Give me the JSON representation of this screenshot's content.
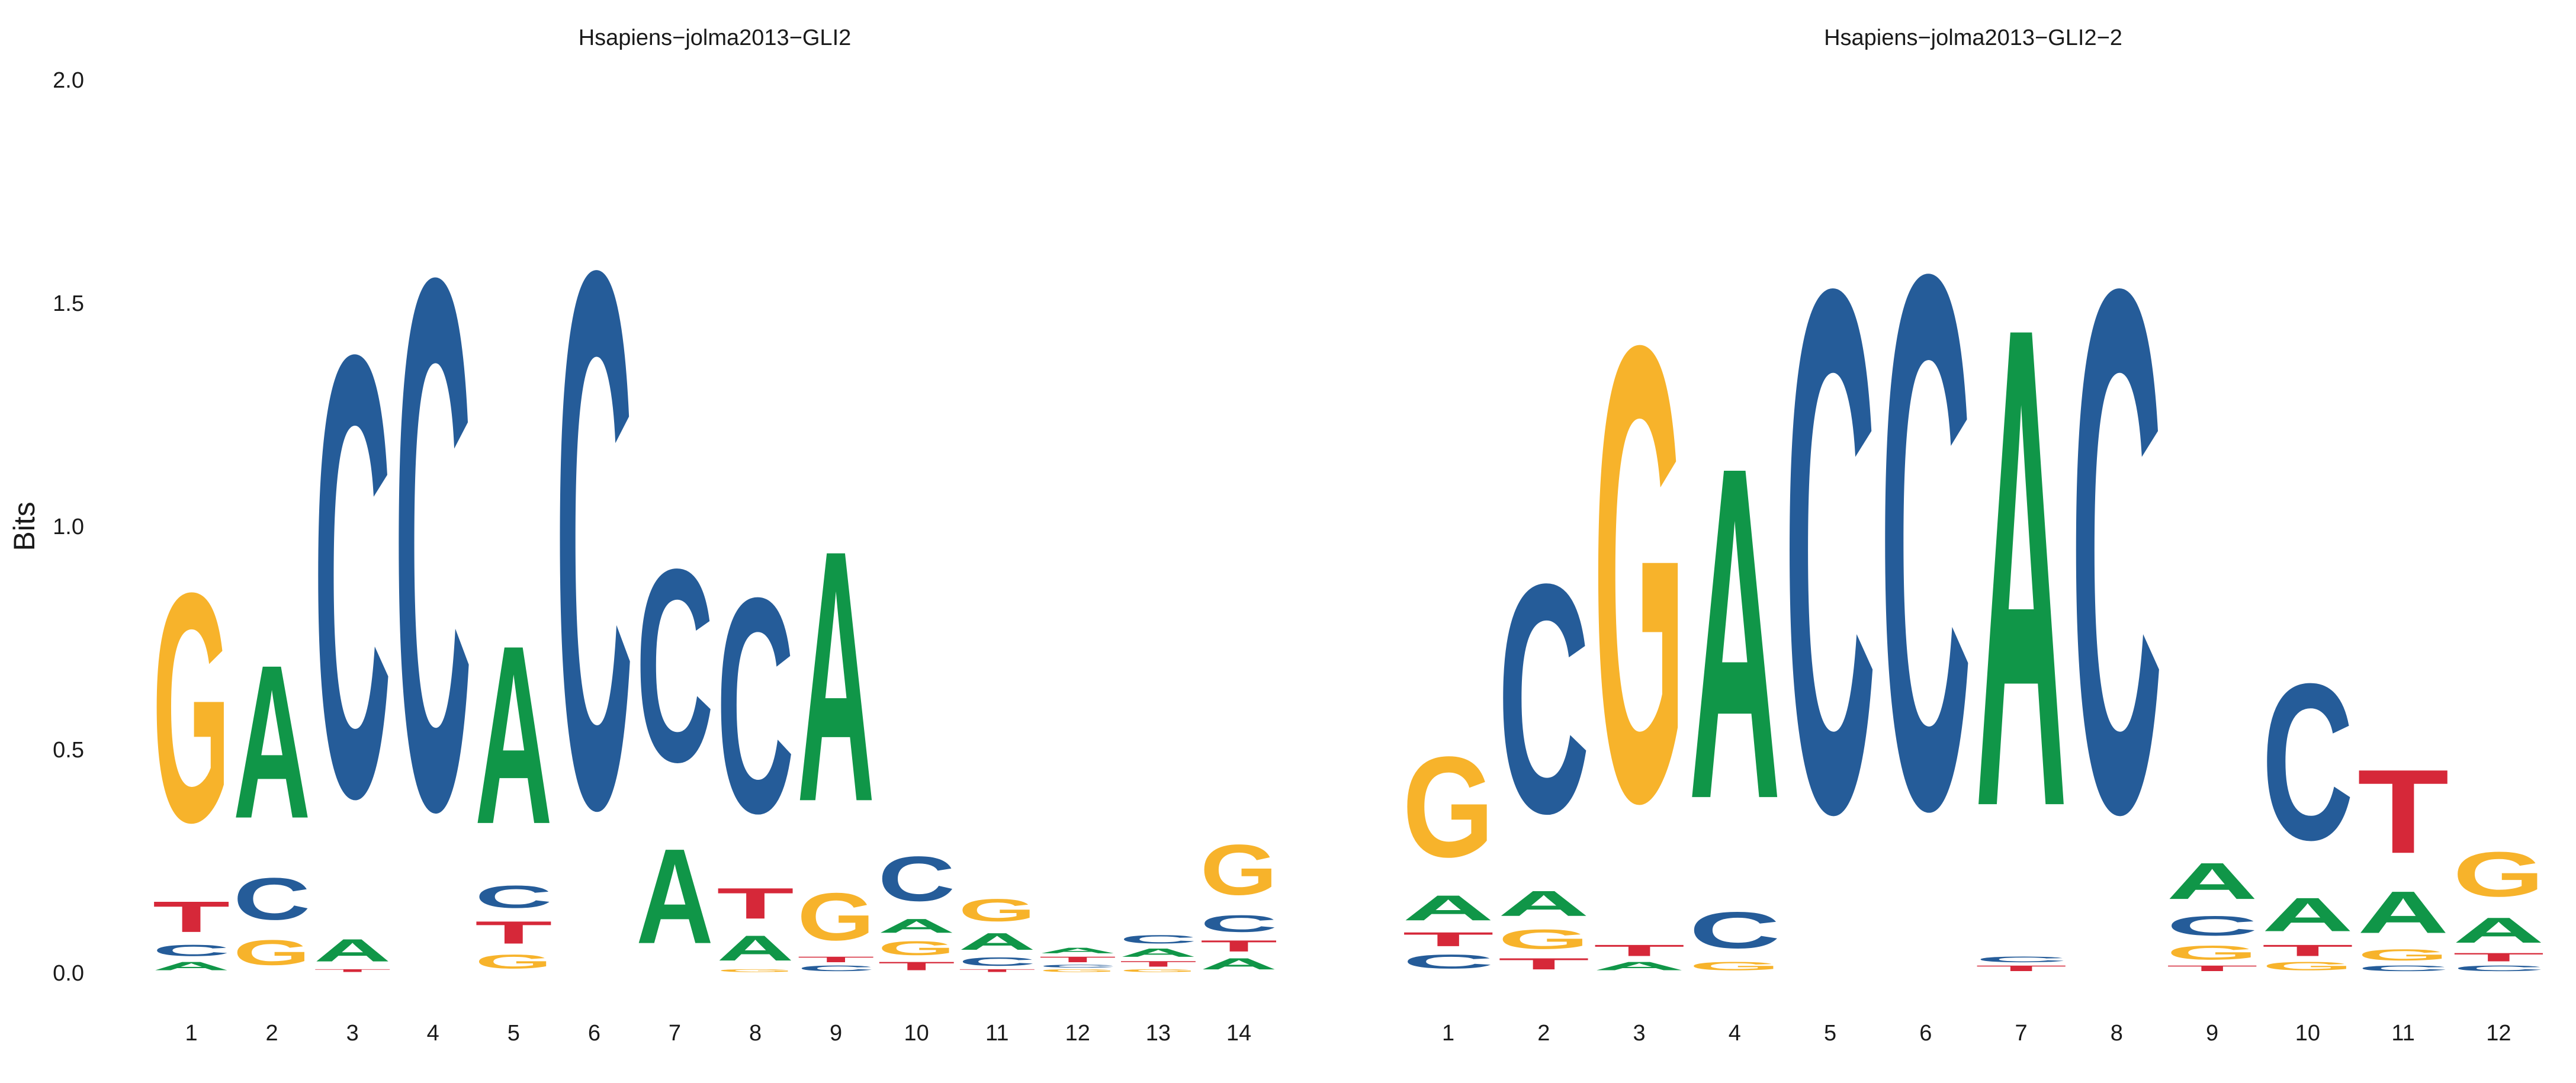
{
  "colors": {
    "A": "#109648",
    "C": "#255C99",
    "G": "#F7B32B",
    "T": "#D62839"
  },
  "chart_data": [
    {
      "type": "sequence-logo",
      "title": "Hsapiens−jolma2013−GLI2",
      "ylabel": "Bits",
      "ylim": [
        0,
        2.0
      ],
      "yticks": [
        "0.0",
        "0.5",
        "1.0",
        "1.5",
        "2.0"
      ],
      "positions": [
        {
          "label": "1",
          "stack": [
            [
              "A",
              0.03
            ],
            [
              "C",
              0.04
            ],
            [
              "T",
              0.11
            ],
            [
              "G",
              0.82
            ]
          ]
        },
        {
          "label": "2",
          "stack": [
            [
              "G",
              0.09
            ],
            [
              "C",
              0.15
            ],
            [
              "A",
              0.55
            ]
          ]
        },
        {
          "label": "3",
          "stack": [
            [
              "T",
              0.01
            ],
            [
              "A",
              0.08
            ],
            [
              "C",
              1.58
            ]
          ]
        },
        {
          "label": "4",
          "stack": [
            [
              "C",
              1.9
            ]
          ]
        },
        {
          "label": "5",
          "stack": [
            [
              "G",
              0.05
            ],
            [
              "T",
              0.08
            ],
            [
              "C",
              0.08
            ],
            [
              "A",
              0.64
            ]
          ]
        },
        {
          "label": "6",
          "stack": [
            [
              "C",
              1.92
            ]
          ]
        },
        {
          "label": "7",
          "stack": [
            [
              "A",
              0.34
            ],
            [
              "C",
              0.69
            ]
          ]
        },
        {
          "label": "8",
          "stack": [
            [
              "G",
              0.01
            ],
            [
              "A",
              0.09
            ],
            [
              "T",
              0.11
            ],
            [
              "C",
              0.77
            ]
          ]
        },
        {
          "label": "9",
          "stack": [
            [
              "C",
              0.02
            ],
            [
              "T",
              0.02
            ],
            [
              "G",
              0.17
            ],
            [
              "A",
              0.9
            ]
          ]
        },
        {
          "label": "10",
          "stack": [
            [
              "T",
              0.03
            ],
            [
              "G",
              0.05
            ],
            [
              "A",
              0.05
            ],
            [
              "C",
              0.16
            ]
          ]
        },
        {
          "label": "11",
          "stack": [
            [
              "T",
              0.01
            ],
            [
              "C",
              0.03
            ],
            [
              "A",
              0.06
            ],
            [
              "G",
              0.08
            ]
          ]
        },
        {
          "label": "12",
          "stack": [
            [
              "G",
              0.01
            ],
            [
              "C",
              0.01
            ],
            [
              "T",
              0.02
            ],
            [
              "A",
              0.02
            ]
          ]
        },
        {
          "label": "13",
          "stack": [
            [
              "G",
              0.01
            ],
            [
              "T",
              0.02
            ],
            [
              "A",
              0.03
            ],
            [
              "C",
              0.03
            ]
          ]
        },
        {
          "label": "14",
          "stack": [
            [
              "A",
              0.04
            ],
            [
              "T",
              0.04
            ],
            [
              "C",
              0.06
            ],
            [
              "G",
              0.18
            ]
          ]
        }
      ]
    },
    {
      "type": "sequence-logo",
      "title": "Hsapiens−jolma2013−GLI2−2",
      "ylabel": "",
      "ylim": [
        0,
        2.0
      ],
      "yticks": [],
      "positions": [
        {
          "label": "1",
          "stack": [
            [
              "C",
              0.05
            ],
            [
              "T",
              0.05
            ],
            [
              "A",
              0.09
            ],
            [
              "G",
              0.36
            ]
          ]
        },
        {
          "label": "2",
          "stack": [
            [
              "T",
              0.04
            ],
            [
              "G",
              0.07
            ],
            [
              "A",
              0.09
            ],
            [
              "C",
              0.82
            ]
          ]
        },
        {
          "label": "3",
          "stack": [
            [
              "A",
              0.03
            ],
            [
              "T",
              0.04
            ],
            [
              "G",
              1.63
            ]
          ]
        },
        {
          "label": "4",
          "stack": [
            [
              "G",
              0.03
            ],
            [
              "C",
              0.13
            ],
            [
              "A",
              1.19
            ]
          ]
        },
        {
          "label": "5",
          "stack": [
            [
              "C",
              1.87
            ]
          ]
        },
        {
          "label": "6",
          "stack": [
            [
              "C",
              1.91
            ]
          ]
        },
        {
          "label": "7",
          "stack": [
            [
              "T",
              0.02
            ],
            [
              "C",
              0.02
            ],
            [
              "A",
              1.72
            ]
          ]
        },
        {
          "label": "8",
          "stack": [
            [
              "C",
              1.87
            ]
          ]
        },
        {
          "label": "9",
          "stack": [
            [
              "T",
              0.02
            ],
            [
              "G",
              0.05
            ],
            [
              "C",
              0.07
            ],
            [
              "A",
              0.13
            ]
          ]
        },
        {
          "label": "10",
          "stack": [
            [
              "G",
              0.03
            ],
            [
              "T",
              0.04
            ],
            [
              "A",
              0.12
            ],
            [
              "C",
              0.56
            ]
          ]
        },
        {
          "label": "11",
          "stack": [
            [
              "C",
              0.02
            ],
            [
              "G",
              0.04
            ],
            [
              "A",
              0.15
            ],
            [
              "T",
              0.3
            ]
          ]
        },
        {
          "label": "12",
          "stack": [
            [
              "C",
              0.02
            ],
            [
              "T",
              0.03
            ],
            [
              "A",
              0.09
            ],
            [
              "G",
              0.16
            ]
          ]
        }
      ]
    }
  ]
}
